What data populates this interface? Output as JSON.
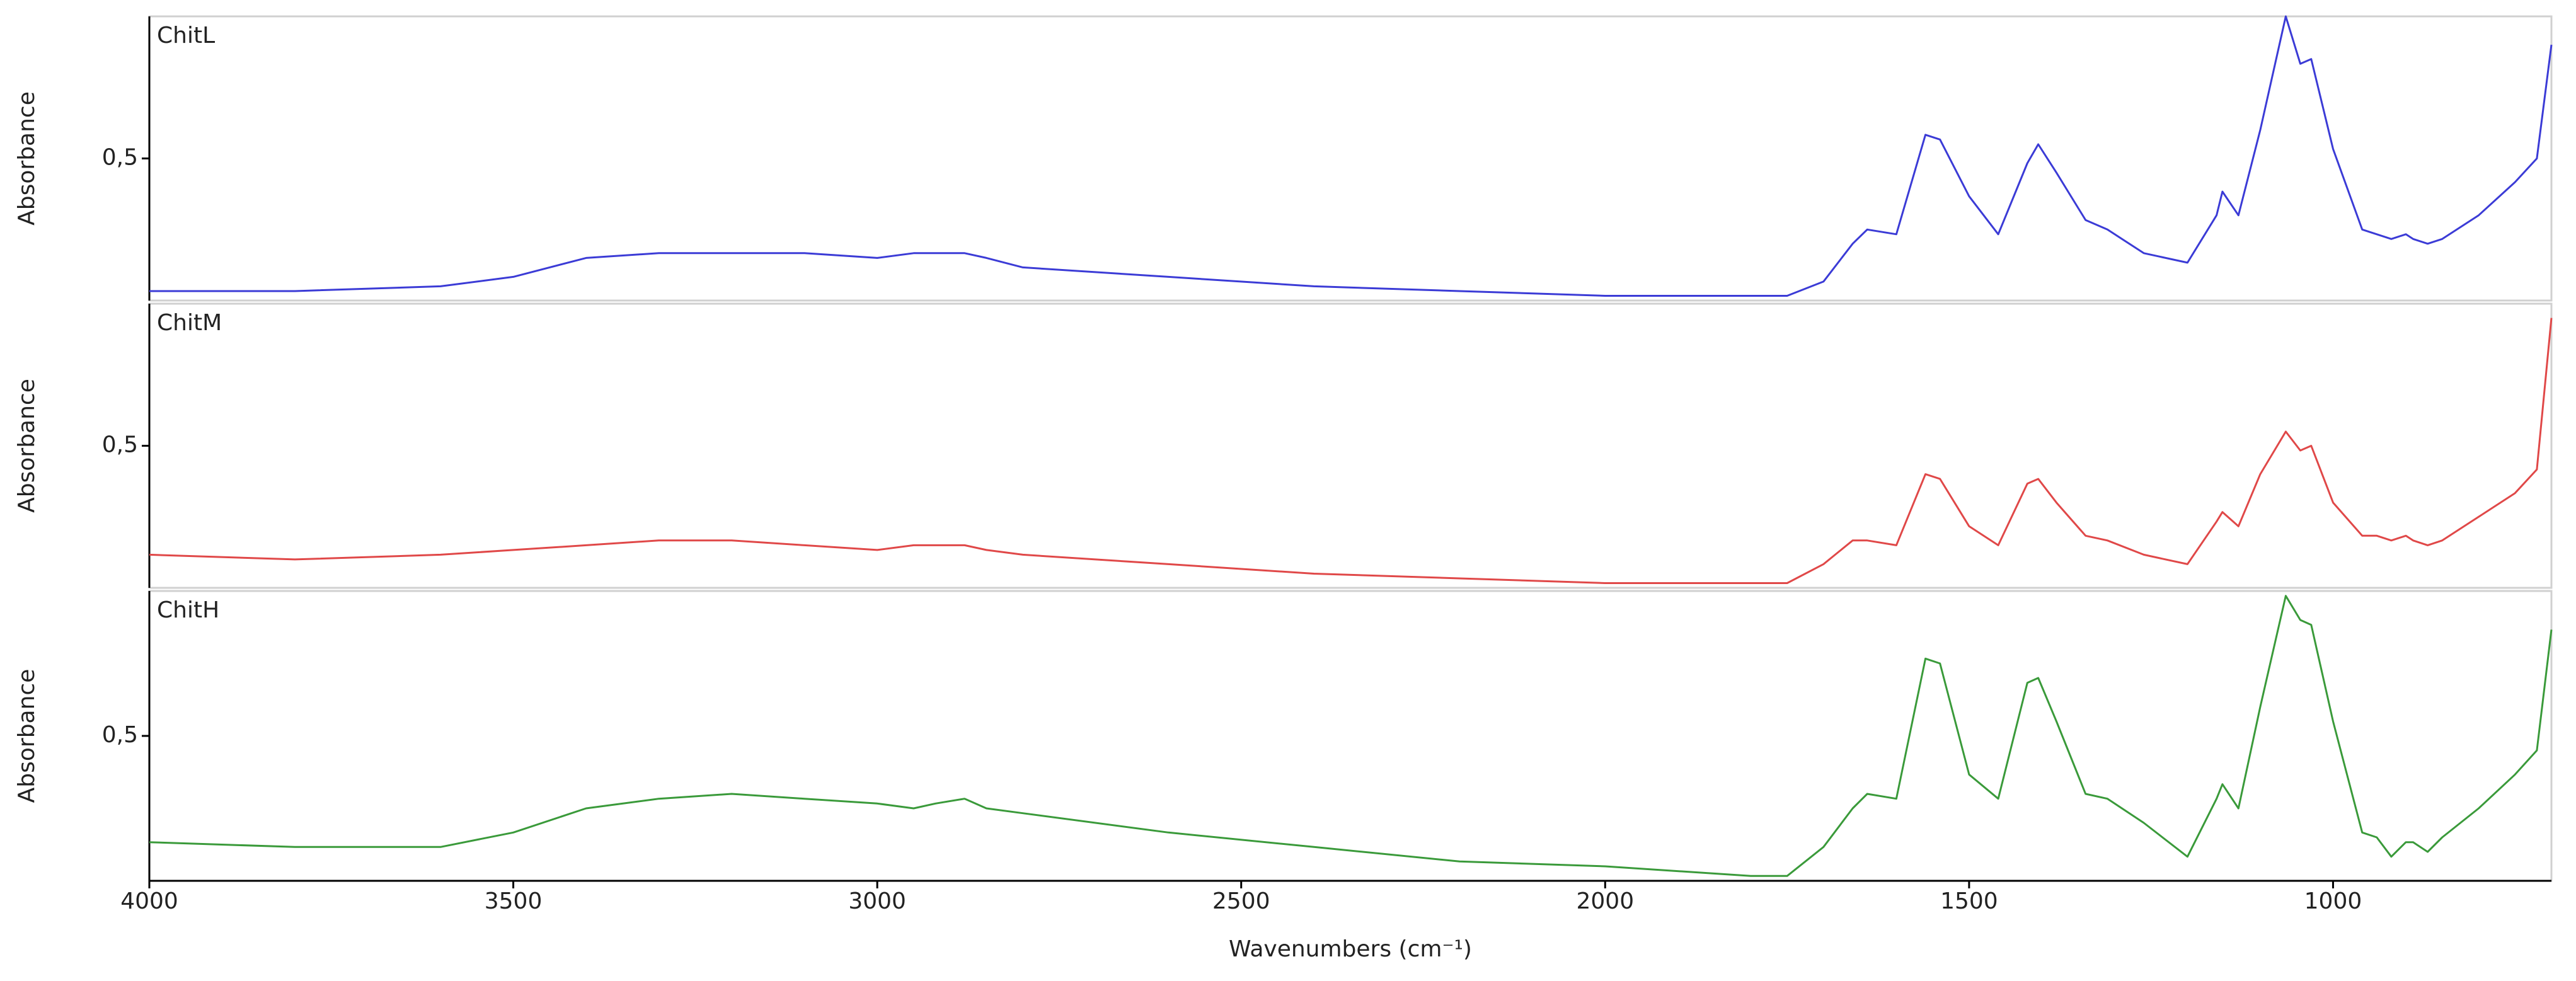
{
  "chart_data": [
    {
      "type": "line",
      "title": "ChitL",
      "ylabel": "Absorbance",
      "x": [
        4000,
        3800,
        3600,
        3500,
        3400,
        3300,
        3200,
        3100,
        3000,
        2950,
        2920,
        2880,
        2850,
        2800,
        2600,
        2400,
        2200,
        2000,
        1800,
        1750,
        1700,
        1660,
        1640,
        1600,
        1560,
        1540,
        1500,
        1460,
        1420,
        1405,
        1380,
        1340,
        1310,
        1260,
        1200,
        1160,
        1152,
        1130,
        1100,
        1065,
        1045,
        1030,
        1000,
        960,
        940,
        920,
        900,
        890,
        870,
        850,
        800,
        750,
        720,
        700
      ],
      "xlim": [
        4000,
        700
      ],
      "ylim": [
        0.2,
        0.8
      ],
      "yticks": [
        {
          "value": 0.5,
          "label": "0,5"
        }
      ],
      "series": [
        {
          "name": "ChitL",
          "color": "#3b3bd6",
          "values": [
            0.22,
            0.22,
            0.23,
            0.25,
            0.29,
            0.3,
            0.3,
            0.3,
            0.29,
            0.3,
            0.3,
            0.3,
            0.29,
            0.27,
            0.25,
            0.23,
            0.22,
            0.21,
            0.21,
            0.21,
            0.24,
            0.32,
            0.35,
            0.34,
            0.55,
            0.54,
            0.42,
            0.34,
            0.49,
            0.53,
            0.47,
            0.37,
            0.35,
            0.3,
            0.28,
            0.38,
            0.43,
            0.38,
            0.56,
            0.8,
            0.7,
            0.71,
            0.52,
            0.35,
            0.34,
            0.33,
            0.34,
            0.33,
            0.32,
            0.33,
            0.38,
            0.45,
            0.5,
            0.74
          ]
        }
      ]
    },
    {
      "type": "line",
      "title": "ChitM",
      "ylabel": "Absorbance",
      "x": [
        4000,
        3800,
        3600,
        3500,
        3400,
        3300,
        3200,
        3100,
        3000,
        2950,
        2920,
        2880,
        2850,
        2800,
        2600,
        2400,
        2200,
        2000,
        1800,
        1750,
        1700,
        1660,
        1640,
        1600,
        1560,
        1540,
        1500,
        1460,
        1420,
        1405,
        1380,
        1340,
        1310,
        1260,
        1200,
        1160,
        1152,
        1130,
        1100,
        1065,
        1045,
        1030,
        1000,
        960,
        940,
        920,
        900,
        890,
        870,
        850,
        800,
        750,
        720,
        700
      ],
      "xlim": [
        4000,
        700
      ],
      "ylim": [
        0.2,
        0.8
      ],
      "yticks": [
        {
          "value": 0.5,
          "label": "0,5"
        }
      ],
      "series": [
        {
          "name": "ChitM",
          "color": "#e04848",
          "values": [
            0.27,
            0.26,
            0.27,
            0.28,
            0.29,
            0.3,
            0.3,
            0.29,
            0.28,
            0.29,
            0.29,
            0.29,
            0.28,
            0.27,
            0.25,
            0.23,
            0.22,
            0.21,
            0.21,
            0.21,
            0.25,
            0.3,
            0.3,
            0.29,
            0.44,
            0.43,
            0.33,
            0.29,
            0.42,
            0.43,
            0.38,
            0.31,
            0.3,
            0.27,
            0.25,
            0.34,
            0.36,
            0.33,
            0.44,
            0.53,
            0.49,
            0.5,
            0.38,
            0.31,
            0.31,
            0.3,
            0.31,
            0.3,
            0.29,
            0.3,
            0.35,
            0.4,
            0.45,
            0.77
          ]
        }
      ]
    },
    {
      "type": "line",
      "title": "ChitH",
      "ylabel": "Absorbance",
      "xlabel": "Wavenumbers (cm⁻¹)",
      "x": [
        4000,
        3800,
        3600,
        3500,
        3400,
        3300,
        3200,
        3100,
        3000,
        2950,
        2920,
        2880,
        2850,
        2800,
        2600,
        2400,
        2200,
        2000,
        1800,
        1750,
        1700,
        1660,
        1640,
        1600,
        1560,
        1540,
        1500,
        1460,
        1420,
        1405,
        1380,
        1340,
        1310,
        1260,
        1200,
        1160,
        1152,
        1130,
        1100,
        1065,
        1045,
        1030,
        1000,
        960,
        940,
        920,
        900,
        890,
        870,
        850,
        800,
        750,
        720,
        700
      ],
      "xlim": [
        4000,
        700
      ],
      "xticks": [
        4000,
        3500,
        3000,
        2500,
        2000,
        1500,
        1000
      ],
      "ylim": [
        0.2,
        0.8
      ],
      "yticks": [
        {
          "value": 0.5,
          "label": "0,5"
        }
      ],
      "series": [
        {
          "name": "ChitH",
          "color": "#3a9a3a",
          "values": [
            0.28,
            0.27,
            0.27,
            0.3,
            0.35,
            0.37,
            0.38,
            0.37,
            0.36,
            0.35,
            0.36,
            0.37,
            0.35,
            0.34,
            0.3,
            0.27,
            0.24,
            0.23,
            0.21,
            0.21,
            0.27,
            0.35,
            0.38,
            0.37,
            0.66,
            0.65,
            0.42,
            0.37,
            0.61,
            0.62,
            0.53,
            0.38,
            0.37,
            0.32,
            0.25,
            0.37,
            0.4,
            0.35,
            0.56,
            0.79,
            0.74,
            0.73,
            0.53,
            0.3,
            0.29,
            0.25,
            0.28,
            0.28,
            0.26,
            0.29,
            0.35,
            0.42,
            0.47,
            0.72
          ]
        }
      ]
    }
  ]
}
